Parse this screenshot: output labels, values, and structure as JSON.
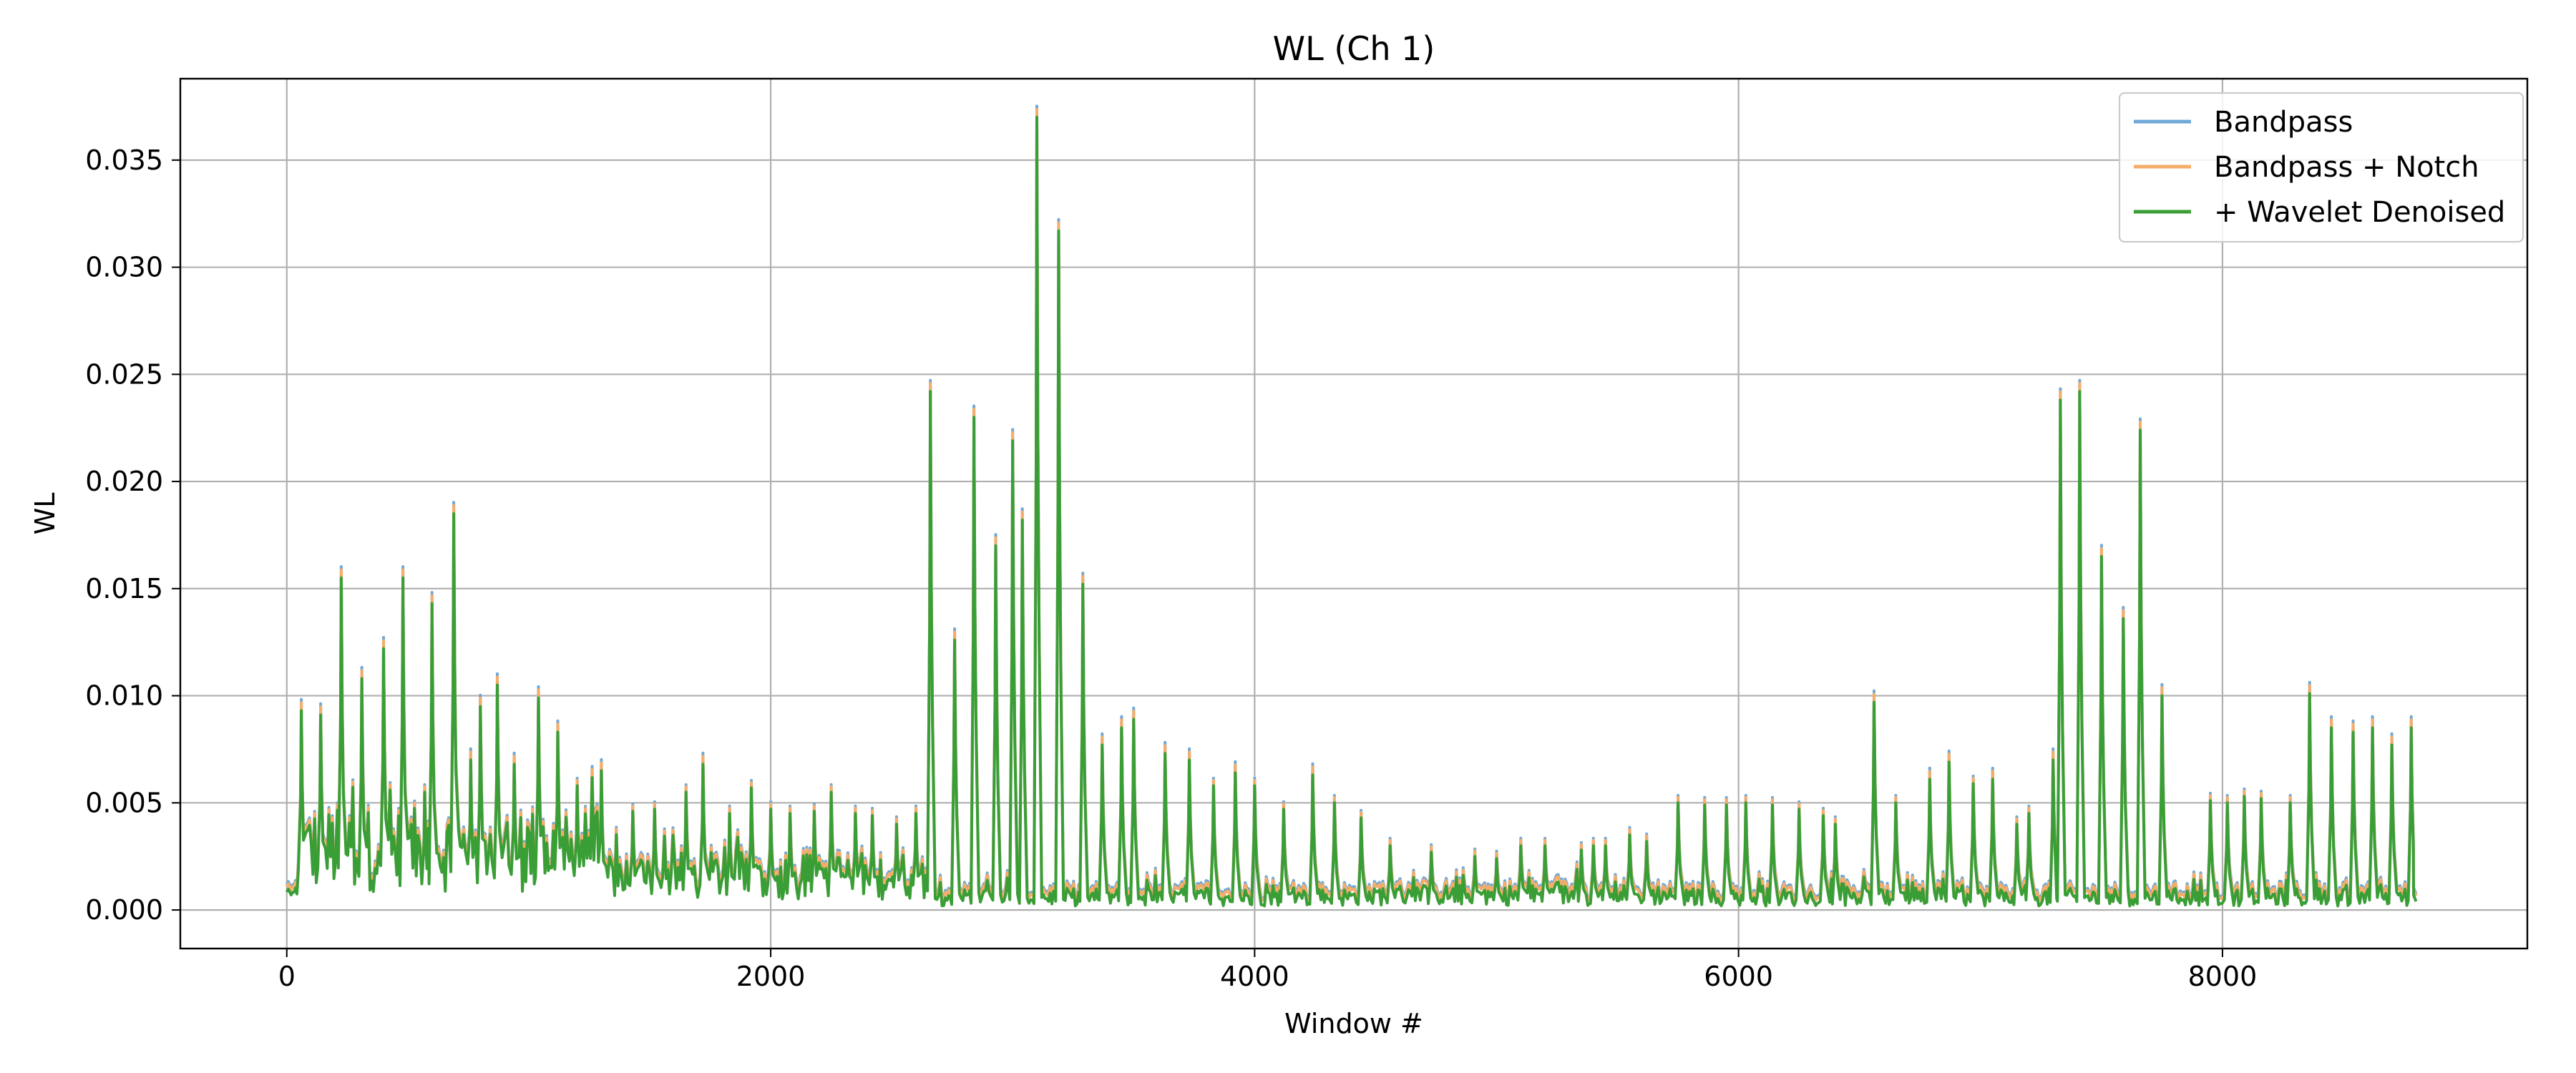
{
  "chart_data": {
    "type": "line",
    "title": "WL (Ch 1)",
    "xlabel": "Window #",
    "ylabel": "WL",
    "xlim": [
      -440,
      9260
    ],
    "ylim": [
      -0.0018,
      0.0388
    ],
    "xticks": [
      0,
      2000,
      4000,
      6000,
      8000
    ],
    "xtick_labels": [
      "0",
      "2000",
      "4000",
      "6000",
      "8000"
    ],
    "yticks": [
      0.0,
      0.005,
      0.01,
      0.015,
      0.02,
      0.025,
      0.03,
      0.035
    ],
    "ytick_labels": [
      "0.000",
      "0.005",
      "0.010",
      "0.015",
      "0.020",
      "0.025",
      "0.030",
      "0.035"
    ],
    "grid": true,
    "legend_position": "top-right",
    "series": [
      {
        "name": "Bandpass",
        "color": "#6fa8d6",
        "offset": 0.00035
      },
      {
        "name": "Bandpass + Notch",
        "color": "#f5ad6a",
        "offset": 0.00025
      },
      {
        "name": "+ Wavelet Denoised",
        "color": "#3a9e36",
        "offset": 0.0
      }
    ],
    "x_max": 8800,
    "peaks": [
      [
        60,
        0.0093
      ],
      [
        140,
        0.0091
      ],
      [
        225,
        0.0155
      ],
      [
        310,
        0.0108
      ],
      [
        400,
        0.0122
      ],
      [
        480,
        0.0155
      ],
      [
        570,
        0.0055
      ],
      [
        600,
        0.0143
      ],
      [
        690,
        0.0185
      ],
      [
        760,
        0.007
      ],
      [
        800,
        0.0095
      ],
      [
        870,
        0.0105
      ],
      [
        940,
        0.0068
      ],
      [
        1040,
        0.0099
      ],
      [
        1120,
        0.0083
      ],
      [
        1200,
        0.0058
      ],
      [
        1300,
        0.0065
      ],
      [
        1430,
        0.0046
      ],
      [
        1520,
        0.0047
      ],
      [
        1650,
        0.0055
      ],
      [
        1720,
        0.0068
      ],
      [
        1830,
        0.0045
      ],
      [
        1920,
        0.0057
      ],
      [
        2000,
        0.0047
      ],
      [
        2080,
        0.0045
      ],
      [
        2180,
        0.0046
      ],
      [
        2250,
        0.0055
      ],
      [
        2350,
        0.0045
      ],
      [
        2420,
        0.0044
      ],
      [
        2520,
        0.004
      ],
      [
        2600,
        0.0045
      ],
      [
        2660,
        0.0242
      ],
      [
        2760,
        0.0126
      ],
      [
        2840,
        0.023
      ],
      [
        2930,
        0.017
      ],
      [
        3000,
        0.0219
      ],
      [
        3040,
        0.0182
      ],
      [
        3100,
        0.037
      ],
      [
        3190,
        0.0317
      ],
      [
        3290,
        0.0152
      ],
      [
        3370,
        0.0077
      ],
      [
        3450,
        0.0085
      ],
      [
        3500,
        0.0089
      ],
      [
        3630,
        0.0073
      ],
      [
        3730,
        0.007
      ],
      [
        3830,
        0.0058
      ],
      [
        3920,
        0.0064
      ],
      [
        4000,
        0.0058
      ],
      [
        4120,
        0.0047
      ],
      [
        4240,
        0.0063
      ],
      [
        4330,
        0.005
      ],
      [
        4440,
        0.0043
      ],
      [
        4560,
        0.003
      ],
      [
        4730,
        0.0027
      ],
      [
        4910,
        0.0025
      ],
      [
        5000,
        0.0024
      ],
      [
        5100,
        0.003
      ],
      [
        5200,
        0.003
      ],
      [
        5350,
        0.0028
      ],
      [
        5400,
        0.003
      ],
      [
        5450,
        0.003
      ],
      [
        5550,
        0.0035
      ],
      [
        5620,
        0.0032
      ],
      [
        5750,
        0.005
      ],
      [
        5860,
        0.0049
      ],
      [
        5950,
        0.0049
      ],
      [
        6030,
        0.005
      ],
      [
        6140,
        0.0049
      ],
      [
        6250,
        0.0047
      ],
      [
        6350,
        0.0044
      ],
      [
        6400,
        0.004
      ],
      [
        6560,
        0.0097
      ],
      [
        6650,
        0.005
      ],
      [
        6790,
        0.0061
      ],
      [
        6870,
        0.0069
      ],
      [
        6970,
        0.0059
      ],
      [
        7050,
        0.0061
      ],
      [
        7150,
        0.004
      ],
      [
        7200,
        0.0045
      ],
      [
        7300,
        0.007
      ],
      [
        7330,
        0.0238
      ],
      [
        7410,
        0.0242
      ],
      [
        7500,
        0.0165
      ],
      [
        7590,
        0.0136
      ],
      [
        7660,
        0.0224
      ],
      [
        7750,
        0.01
      ],
      [
        7950,
        0.0051
      ],
      [
        8020,
        0.005
      ],
      [
        8090,
        0.0053
      ],
      [
        8160,
        0.0052
      ],
      [
        8280,
        0.005
      ],
      [
        8360,
        0.0101
      ],
      [
        8450,
        0.0085
      ],
      [
        8540,
        0.0083
      ],
      [
        8620,
        0.0085
      ],
      [
        8700,
        0.0077
      ],
      [
        8780,
        0.0085
      ]
    ]
  }
}
